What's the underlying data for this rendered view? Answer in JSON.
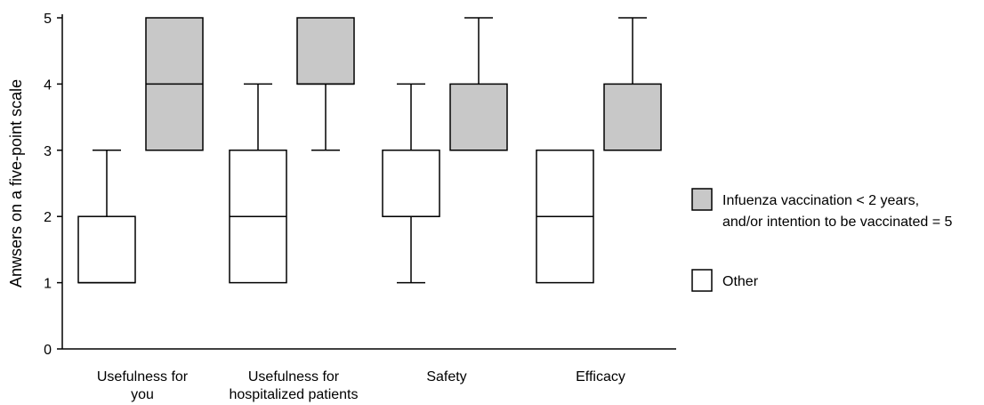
{
  "chart_data": {
    "type": "box",
    "ylabel": "Anwsers on a five-point scale",
    "ylim": [
      0,
      5
    ],
    "yticks": [
      "0",
      "1",
      "2",
      "3",
      "4",
      "5"
    ],
    "categories": [
      [
        "Usefulness for",
        "you"
      ],
      [
        "Usefulness for",
        "hospitalized patients"
      ],
      [
        "Safety"
      ],
      [
        "Efficacy"
      ]
    ],
    "series": [
      {
        "name_lines": [
          "Other"
        ],
        "color": "#ffffff",
        "boxes": [
          {
            "whisker_low": 1,
            "q1": 1,
            "median": 1,
            "q3": 2,
            "whisker_high": 3
          },
          {
            "whisker_low": 1,
            "q1": 1,
            "median": 2,
            "q3": 3,
            "whisker_high": 4
          },
          {
            "whisker_low": 1,
            "q1": 2,
            "median": 2,
            "q3": 3,
            "whisker_high": 4
          },
          {
            "whisker_low": 1,
            "q1": 1,
            "median": 2,
            "q3": 3,
            "whisker_high": 3
          }
        ]
      },
      {
        "name_lines": [
          "Infuenza vaccination < 2 years,",
          "and/or intention to be vaccinated = 5"
        ],
        "color": "#c8c8c8",
        "boxes": [
          {
            "whisker_low": 3,
            "q1": 3,
            "median": 4,
            "q3": 5,
            "whisker_high": 5
          },
          {
            "whisker_low": 3,
            "q1": 4,
            "median": 4,
            "q3": 5,
            "whisker_high": 5
          },
          {
            "whisker_low": 3,
            "q1": 3,
            "median": 3,
            "q3": 4,
            "whisker_high": 5
          },
          {
            "whisker_low": 3,
            "q1": 3,
            "median": 3,
            "q3": 4,
            "whisker_high": 5
          }
        ]
      }
    ],
    "legend_order": [
      1,
      0
    ],
    "legend_position": "right"
  }
}
